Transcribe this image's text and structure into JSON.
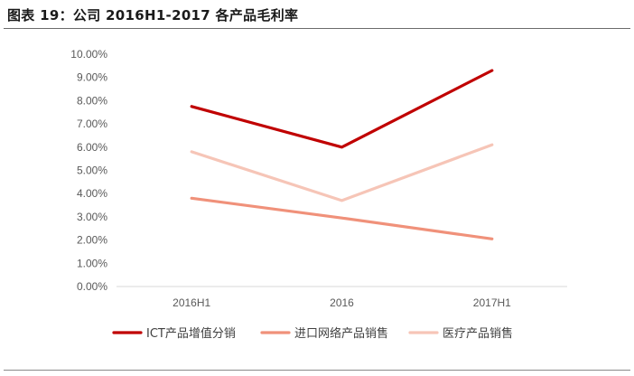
{
  "figure": {
    "title": "图表 19：公司 2016H1-2017 各产品毛利率"
  },
  "chart_data": {
    "type": "line",
    "title": "",
    "xlabel": "",
    "ylabel": "",
    "categories": [
      "2016H1",
      "2016",
      "2017H1"
    ],
    "ylim": [
      0,
      10
    ],
    "y_ticks": [
      "0.00%",
      "1.00%",
      "2.00%",
      "3.00%",
      "4.00%",
      "5.00%",
      "6.00%",
      "7.00%",
      "8.00%",
      "9.00%",
      "10.00%"
    ],
    "grid": false,
    "legend_position": "bottom",
    "series": [
      {
        "name": "ICT产品增值分销",
        "values": [
          7.75,
          6.0,
          9.3
        ],
        "color": "#c00000"
      },
      {
        "name": "进口网络产品销售",
        "values": [
          3.8,
          2.95,
          2.05
        ],
        "color": "#f0917a"
      },
      {
        "name": "医疗产品销售",
        "values": [
          5.8,
          3.7,
          6.1
        ],
        "color": "#f6c5b7"
      }
    ]
  }
}
